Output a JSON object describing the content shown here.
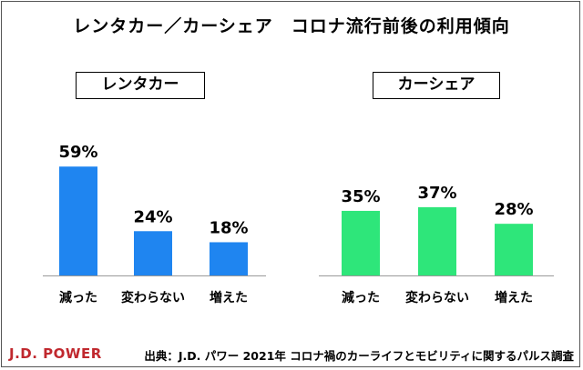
{
  "title": "レンタカー／カーシェア　コロナ流行前後の利用傾向",
  "footer": {
    "logo": "J.D. POWER",
    "source": "出典：J.D. パワー 2021年 コロナ禍のカーライフとモビリティに関するパルス調査"
  },
  "colors": {
    "rental": "#1f85f0",
    "share": "#2ee67a",
    "accent": "#c0282e"
  },
  "chart_data": [
    {
      "type": "bar",
      "title": "レンタカー",
      "categories": [
        "減った",
        "変わらない",
        "増えた"
      ],
      "values": [
        59,
        24,
        18
      ],
      "value_labels": [
        "59%",
        "24%",
        "18%"
      ],
      "ylim": [
        0,
        100
      ],
      "grid": false,
      "color": "#1f85f0"
    },
    {
      "type": "bar",
      "title": "カーシェア",
      "categories": [
        "減った",
        "変わらない",
        "増えた"
      ],
      "values": [
        35,
        37,
        28
      ],
      "value_labels": [
        "35%",
        "37%",
        "28%"
      ],
      "ylim": [
        0,
        100
      ],
      "grid": false,
      "color": "#2ee67a"
    }
  ]
}
